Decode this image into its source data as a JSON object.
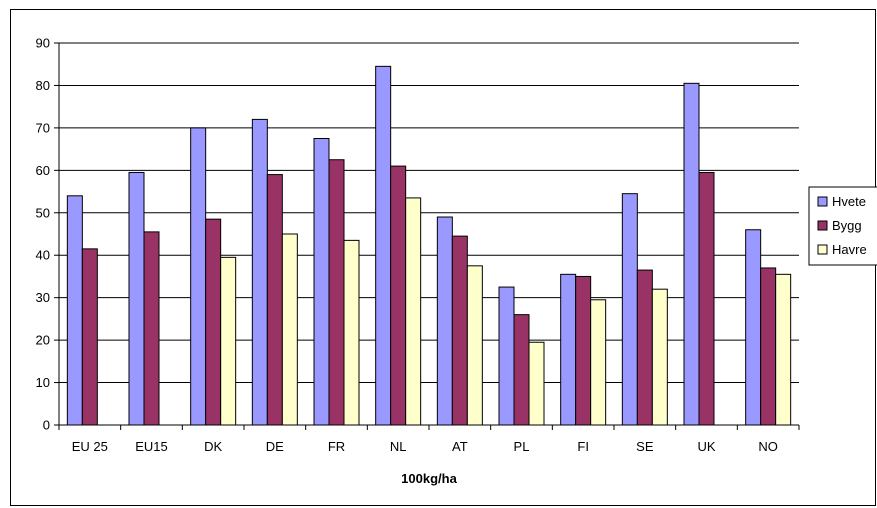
{
  "chart_data": {
    "type": "bar",
    "categories": [
      "EU 25",
      "EU15",
      "DK",
      "DE",
      "FR",
      "NL",
      "AT",
      "PL",
      "FI",
      "SE",
      "UK",
      "NO"
    ],
    "series": [
      {
        "name": "Hvete",
        "color": "#9999ff",
        "values": [
          54,
          59.5,
          70,
          72,
          67.5,
          84.5,
          49,
          32.5,
          35.5,
          54.5,
          80.5,
          46
        ]
      },
      {
        "name": "Bygg",
        "color": "#993366",
        "values": [
          41.5,
          45.5,
          48.5,
          59,
          62.5,
          61,
          44.5,
          26,
          35,
          36.5,
          59.5,
          37
        ]
      },
      {
        "name": "Havre",
        "color": "#ffffcc",
        "values": [
          null,
          null,
          39.5,
          45,
          43.5,
          53.5,
          37.5,
          19.5,
          29.5,
          32,
          null,
          35.5
        ]
      }
    ],
    "title": "",
    "xlabel": "100kg/ha",
    "ylabel": "",
    "ylim": [
      0,
      90
    ],
    "yticks": [
      "0",
      "10",
      "20",
      "30",
      "40",
      "50",
      "60",
      "70",
      "80",
      "90"
    ],
    "grid": true,
    "legend_position": "right"
  }
}
